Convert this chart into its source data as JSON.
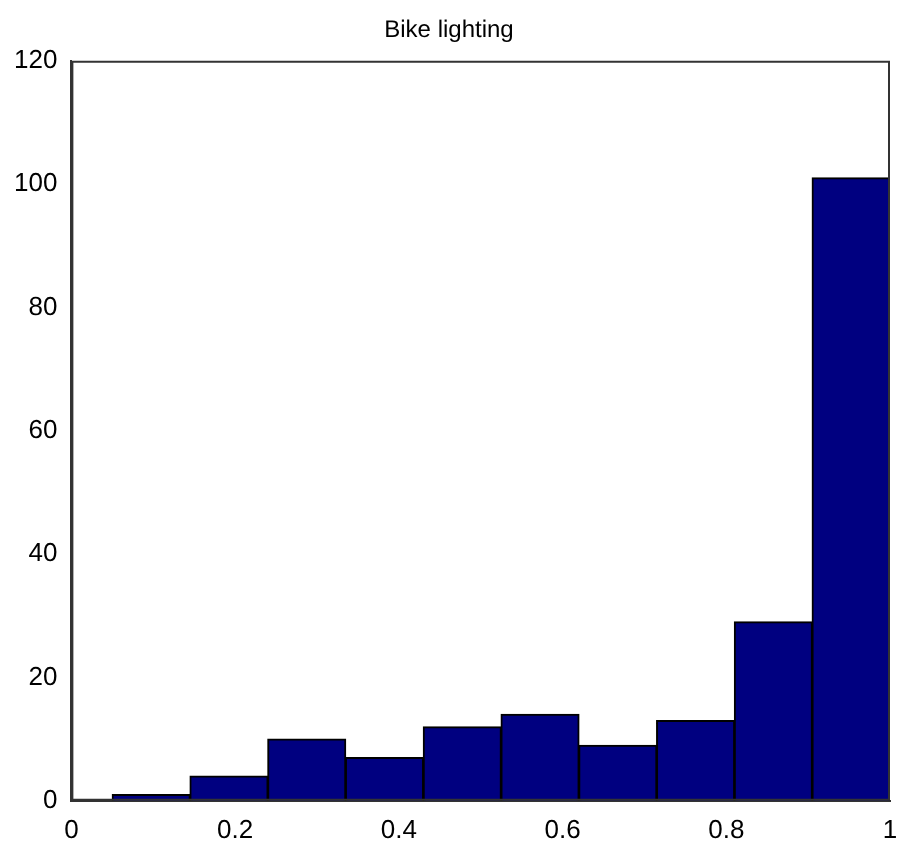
{
  "chart_data": {
    "type": "histogram",
    "title": "Bike lighting",
    "bins": [
      0.05,
      0.145,
      0.24,
      0.335,
      0.43,
      0.525,
      0.62,
      0.715,
      0.81,
      0.905,
      1.0
    ],
    "values": [
      1,
      4,
      10,
      7,
      12,
      14,
      9,
      13,
      29,
      101
    ],
    "color": "#000080",
    "xlim": [
      0,
      1
    ],
    "xticks": [
      0,
      0.2,
      0.4,
      0.6,
      0.8,
      1
    ],
    "ylim": [
      0,
      120
    ],
    "yticks": [
      0,
      20,
      40,
      60,
      80,
      100,
      120
    ]
  }
}
